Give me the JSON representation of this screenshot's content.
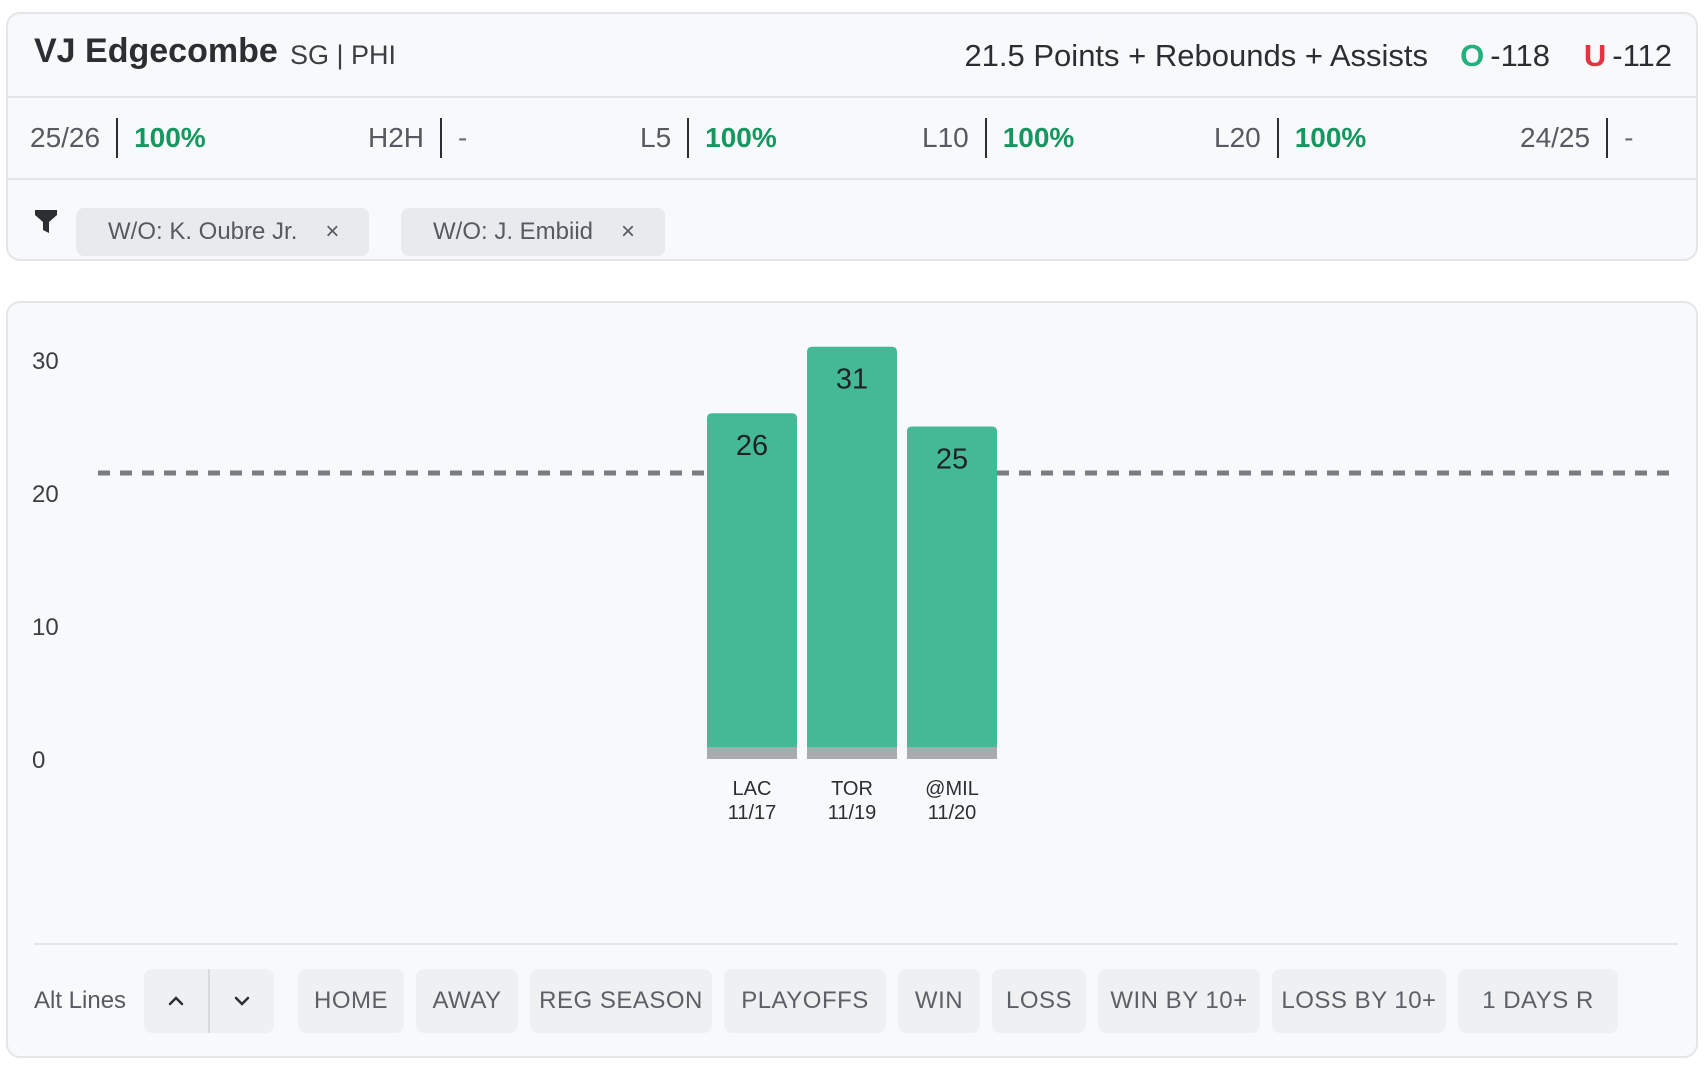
{
  "player": {
    "name": "VJ Edgecombe",
    "meta": "SG | PHI"
  },
  "prop": {
    "line": "21.5 Points + Rebounds + Assists",
    "over_tag": "O",
    "over_odds": "-118",
    "under_tag": "U",
    "under_odds": "-112"
  },
  "stats": [
    {
      "label": "25/26",
      "value": "100%"
    },
    {
      "label": "H2H",
      "value": "-"
    },
    {
      "label": "L5",
      "value": "100%"
    },
    {
      "label": "L10",
      "value": "100%"
    },
    {
      "label": "L20",
      "value": "100%"
    },
    {
      "label": "24/25",
      "value": "-"
    }
  ],
  "filters": [
    {
      "label": "W/O: K. Oubre Jr.",
      "close": "×"
    },
    {
      "label": "W/O: J. Embiid",
      "close": "×"
    }
  ],
  "chart_data": {
    "type": "bar",
    "categories": [
      "LAC 11/17",
      "TOR 11/19",
      "@MIL 11/20"
    ],
    "opponents": [
      "LAC",
      "TOR",
      "@MIL"
    ],
    "dates": [
      "11/17",
      "11/19",
      "11/20"
    ],
    "values": [
      26,
      31,
      25
    ],
    "yticks": [
      0,
      10,
      20,
      30
    ],
    "ylim": [
      0,
      33
    ],
    "reference_line": 21.5,
    "title": "",
    "xlabel": "",
    "ylabel": "",
    "bar_color": "#45b994",
    "base_color": "#a9aaab",
    "line_color": "#7a7d80",
    "grid": false
  },
  "controls": {
    "alt_lines_label": "Alt Lines",
    "filters": [
      "HOME",
      "AWAY",
      "REG SEASON",
      "PLAYOFFS",
      "WIN",
      "LOSS",
      "WIN BY 10+",
      "LOSS BY 10+",
      "1 DAYS R"
    ]
  }
}
